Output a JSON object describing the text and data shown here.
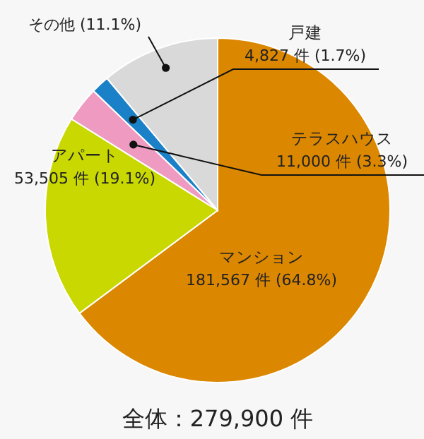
{
  "chart_data": {
    "type": "pie",
    "title": "全体：279,900 件",
    "categories": [
      "マンション",
      "アパート",
      "テラスハウス",
      "戸建",
      "その他"
    ],
    "values": [
      64.8,
      19.1,
      3.3,
      1.7,
      11.1
    ],
    "colors": [
      "#dc8700",
      "#c8d800",
      "#ef9ac0",
      "#1a80c8",
      "#d9d9d9"
    ],
    "value_labels": [
      "181,567 件 (64.8%)",
      "53,505 件 (19.1%)",
      "11,000 件 (3.3%)",
      "4,827 件 (1.7%)",
      "(11.1%)"
    ]
  }
}
